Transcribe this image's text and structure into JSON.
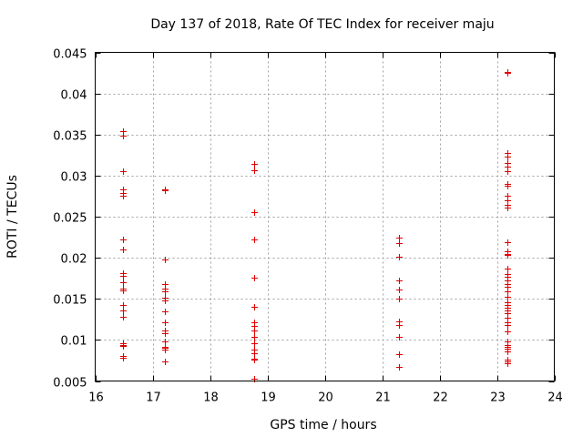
{
  "chart_data": {
    "type": "scatter",
    "title": "Day 137 of 2018, Rate Of TEC Index for receiver maju",
    "xlabel": "GPS time / hours",
    "ylabel": "ROTI / TECUs",
    "xlim": [
      16,
      24
    ],
    "ylim": [
      0.005,
      0.045
    ],
    "xticks": [
      16,
      17,
      18,
      19,
      20,
      21,
      22,
      23,
      24
    ],
    "xtick_labels": [
      "16",
      "17",
      "18",
      "19",
      "20",
      "21",
      "22",
      "23",
      "24"
    ],
    "yticks": [
      0.005,
      0.01,
      0.015,
      0.02,
      0.025,
      0.03,
      0.035,
      0.04,
      0.045
    ],
    "ytick_labels": [
      "0.005",
      "0.01",
      "0.015",
      "0.02",
      "0.025",
      "0.03",
      "0.035",
      "0.04",
      "0.045"
    ],
    "grid": true,
    "marker": "+",
    "color": "#e00000",
    "series": [
      {
        "name": "ROTI",
        "points": [
          [
            16.48,
            0.0354
          ],
          [
            16.48,
            0.0349
          ],
          [
            16.48,
            0.0305
          ],
          [
            16.48,
            0.0283
          ],
          [
            16.48,
            0.0279
          ],
          [
            16.48,
            0.0275
          ],
          [
            16.48,
            0.0222
          ],
          [
            16.48,
            0.021
          ],
          [
            16.48,
            0.0181
          ],
          [
            16.48,
            0.0178
          ],
          [
            16.48,
            0.017
          ],
          [
            16.48,
            0.0162
          ],
          [
            16.48,
            0.016
          ],
          [
            16.48,
            0.0142
          ],
          [
            16.48,
            0.0136
          ],
          [
            16.48,
            0.0128
          ],
          [
            16.48,
            0.0096
          ],
          [
            16.48,
            0.0094
          ],
          [
            16.48,
            0.0093
          ],
          [
            16.48,
            0.008
          ],
          [
            16.48,
            0.0078
          ],
          [
            17.22,
            0.0283
          ],
          [
            17.22,
            0.0282
          ],
          [
            17.22,
            0.0198
          ],
          [
            17.22,
            0.0168
          ],
          [
            17.22,
            0.0163
          ],
          [
            17.22,
            0.0159
          ],
          [
            17.22,
            0.0151
          ],
          [
            17.22,
            0.0148
          ],
          [
            17.22,
            0.0135
          ],
          [
            17.22,
            0.0122
          ],
          [
            17.22,
            0.0112
          ],
          [
            17.22,
            0.0108
          ],
          [
            17.22,
            0.0098
          ],
          [
            17.22,
            0.0092
          ],
          [
            17.22,
            0.009
          ],
          [
            17.22,
            0.0088
          ],
          [
            17.22,
            0.0074
          ],
          [
            18.77,
            0.0314
          ],
          [
            18.77,
            0.0307
          ],
          [
            18.77,
            0.0256
          ],
          [
            18.77,
            0.0222
          ],
          [
            18.77,
            0.0176
          ],
          [
            18.77,
            0.014
          ],
          [
            18.77,
            0.0122
          ],
          [
            18.77,
            0.0117
          ],
          [
            18.77,
            0.0111
          ],
          [
            18.77,
            0.0104
          ],
          [
            18.77,
            0.0096
          ],
          [
            18.77,
            0.0088
          ],
          [
            18.77,
            0.0084
          ],
          [
            18.77,
            0.0077
          ],
          [
            18.77,
            0.0076
          ],
          [
            18.77,
            0.0053
          ],
          [
            21.3,
            0.0225
          ],
          [
            21.3,
            0.0218
          ],
          [
            21.3,
            0.0201
          ],
          [
            21.3,
            0.0172
          ],
          [
            21.3,
            0.0161
          ],
          [
            21.3,
            0.015
          ],
          [
            21.3,
            0.0123
          ],
          [
            21.3,
            0.0118
          ],
          [
            21.3,
            0.0104
          ],
          [
            21.3,
            0.0083
          ],
          [
            21.3,
            0.0067
          ],
          [
            23.18,
            0.0426
          ],
          [
            23.18,
            0.0425
          ],
          [
            23.18,
            0.0328
          ],
          [
            23.18,
            0.0323
          ],
          [
            23.18,
            0.0315
          ],
          [
            23.18,
            0.0311
          ],
          [
            23.18,
            0.0305
          ],
          [
            23.18,
            0.029
          ],
          [
            23.18,
            0.0288
          ],
          [
            23.18,
            0.0275
          ],
          [
            23.18,
            0.027
          ],
          [
            23.18,
            0.0264
          ],
          [
            23.18,
            0.0261
          ],
          [
            23.18,
            0.0219
          ],
          [
            23.18,
            0.0208
          ],
          [
            23.18,
            0.0205
          ],
          [
            23.18,
            0.0203
          ],
          [
            23.18,
            0.0187
          ],
          [
            23.18,
            0.018
          ],
          [
            23.18,
            0.0177
          ],
          [
            23.18,
            0.0172
          ],
          [
            23.18,
            0.0168
          ],
          [
            23.18,
            0.0165
          ],
          [
            23.18,
            0.0159
          ],
          [
            23.18,
            0.0152
          ],
          [
            23.18,
            0.0146
          ],
          [
            23.18,
            0.0142
          ],
          [
            23.18,
            0.0139
          ],
          [
            23.18,
            0.0136
          ],
          [
            23.18,
            0.0132
          ],
          [
            23.18,
            0.0127
          ],
          [
            23.18,
            0.0122
          ],
          [
            23.18,
            0.0118
          ],
          [
            23.18,
            0.011
          ],
          [
            23.18,
            0.0098
          ],
          [
            23.18,
            0.0094
          ],
          [
            23.18,
            0.0091
          ],
          [
            23.18,
            0.0089
          ],
          [
            23.18,
            0.0086
          ],
          [
            23.18,
            0.0076
          ],
          [
            23.18,
            0.0074
          ],
          [
            23.18,
            0.0072
          ]
        ]
      }
    ]
  }
}
